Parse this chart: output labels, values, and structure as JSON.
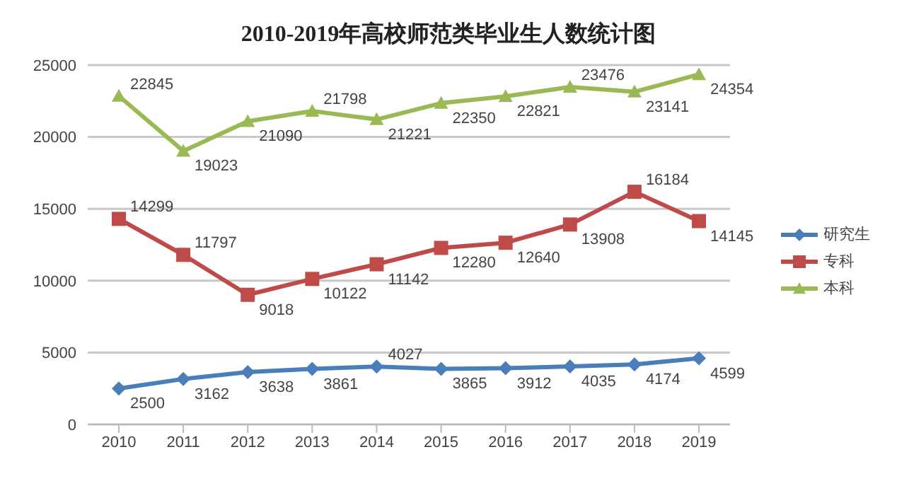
{
  "chart_data": {
    "type": "line",
    "title": "2010-2019年高校师范类毕业生人数统计图",
    "categories": [
      "2010",
      "2011",
      "2012",
      "2013",
      "2014",
      "2015",
      "2016",
      "2017",
      "2018",
      "2019"
    ],
    "series": [
      {
        "name": "研究生",
        "color": "#4a7ebb",
        "marker": "diamond",
        "values": [
          2500,
          3162,
          3638,
          3861,
          4027,
          3865,
          3912,
          4035,
          4174,
          4599
        ]
      },
      {
        "name": "专科",
        "color": "#be4b48",
        "marker": "square",
        "values": [
          14299,
          11797,
          9018,
          10122,
          11142,
          12280,
          12640,
          13908,
          16184,
          14145
        ]
      },
      {
        "name": "本科",
        "color": "#98b954",
        "marker": "triangle",
        "values": [
          22845,
          19023,
          21090,
          21798,
          21221,
          22350,
          22821,
          23476,
          23141,
          24354
        ]
      }
    ],
    "ylim": [
      0,
      25000
    ],
    "yticks": [
      0,
      5000,
      10000,
      15000,
      20000,
      25000
    ],
    "grid": "y",
    "legend": "right",
    "data_labels": true
  }
}
